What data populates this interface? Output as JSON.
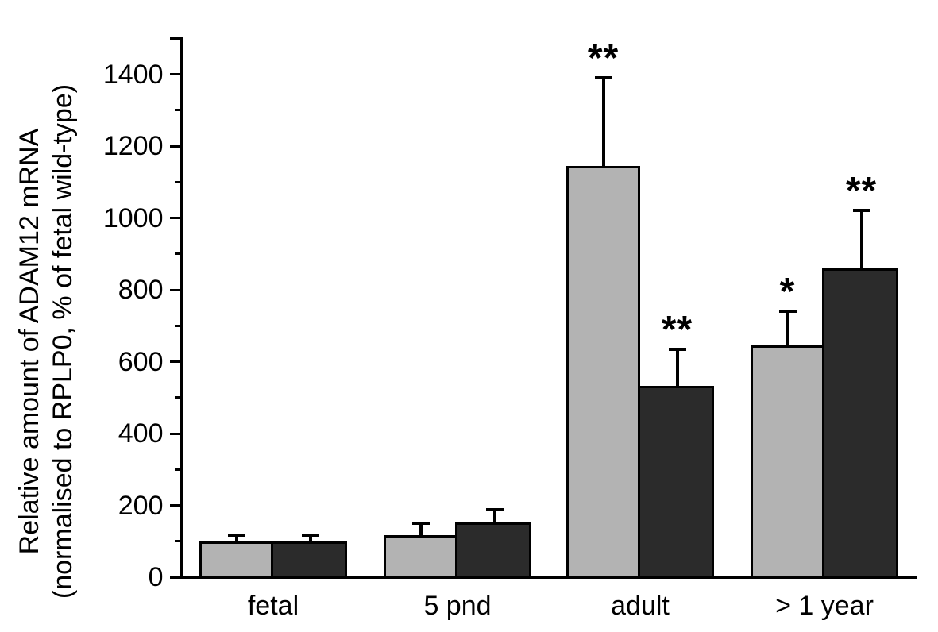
{
  "figure": {
    "y_axis_label_line1": "Relative amount of ADAM12 mRNA",
    "y_axis_label_line2": "(normalised to RPLP0, % of fetal wild-type)"
  },
  "chart_data": {
    "type": "bar",
    "title": "",
    "xlabel": "",
    "ylabel": "Relative amount of ADAM12 mRNA (normalised to RPLP0, % of fetal wild-type)",
    "categories": [
      "fetal",
      "5 pnd",
      "adult",
      "> 1 year"
    ],
    "series": [
      {
        "name": "light-grey-bars",
        "color": "#b3b3b3",
        "values": [
          100,
          118,
          1145,
          645
        ],
        "errors_up": [
          18,
          32,
          245,
          95
        ],
        "significance": [
          "",
          "",
          "**",
          "*"
        ]
      },
      {
        "name": "dark-grey-bars",
        "color": "#2b2b2b",
        "values": [
          100,
          153,
          532,
          860
        ],
        "errors_up": [
          18,
          35,
          103,
          162
        ],
        "significance": [
          "",
          "",
          "**",
          "**"
        ]
      }
    ],
    "ylim": [
      0,
      1500
    ],
    "yticks_major": [
      0,
      200,
      400,
      600,
      800,
      1000,
      1200,
      1400
    ],
    "yticks_minor": [
      100,
      300,
      500,
      700,
      900,
      1100,
      1300
    ],
    "axis_end_tick": 1500,
    "grid": false,
    "legend_position": "none",
    "error_bar_direction": "up-only",
    "bar_outline_color": "#000000"
  }
}
